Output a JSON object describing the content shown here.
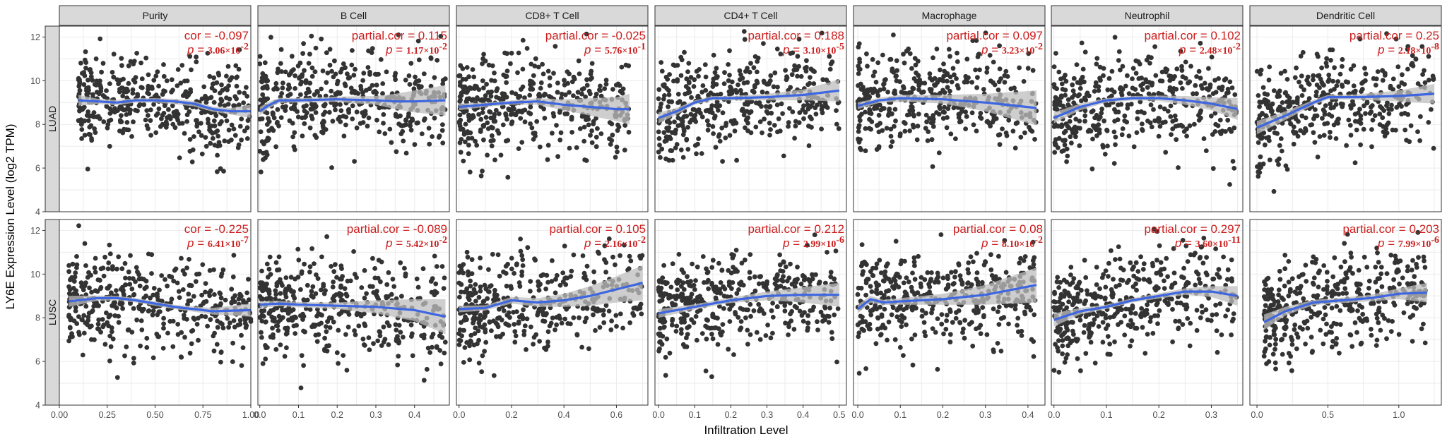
{
  "figure": {
    "xlabel": "Infiltration Level",
    "ylabel": "LY6E Expression Level (log2 TPM)"
  },
  "rows": [
    "LUAD",
    "LUSC"
  ],
  "columns": [
    {
      "title": "Purity",
      "xlim": [
        0,
        1.0
      ],
      "xticks": [
        0.0,
        0.25,
        0.5,
        0.75,
        1.0
      ],
      "xtick_labels": [
        "0.00",
        "0.25",
        "0.50",
        "0.75",
        "1.00"
      ]
    },
    {
      "title": "B Cell",
      "xlim": [
        -0.005,
        0.49
      ],
      "xticks": [
        0,
        0.1,
        0.2,
        0.3,
        0.4
      ],
      "xtick_labels": [
        "0.0",
        "0.1",
        "0.2",
        "0.3",
        "0.4"
      ]
    },
    {
      "title": "CD8+ T Cell",
      "xlim": [
        -0.01,
        0.72
      ],
      "xticks": [
        0,
        0.2,
        0.4,
        0.6
      ],
      "xtick_labels": [
        "0.0",
        "0.2",
        "0.4",
        "0.6"
      ]
    },
    {
      "title": "CD4+ T Cell",
      "xlim": [
        -0.01,
        0.52
      ],
      "xticks": [
        0,
        0.1,
        0.2,
        0.3,
        0.4,
        0.5
      ],
      "xtick_labels": [
        "0.0",
        "0.1",
        "0.2",
        "0.3",
        "0.4",
        "0.5"
      ]
    },
    {
      "title": "Macrophage",
      "xlim": [
        -0.01,
        0.44
      ],
      "xticks": [
        0,
        0.1,
        0.2,
        0.3,
        0.4
      ],
      "xtick_labels": [
        "0.0",
        "0.1",
        "0.2",
        "0.3",
        "0.4"
      ]
    },
    {
      "title": "Neutrophil",
      "xlim": [
        -0.005,
        0.36
      ],
      "xticks": [
        0,
        0.1,
        0.2,
        0.3
      ],
      "xtick_labels": [
        "0.0",
        "0.1",
        "0.2",
        "0.3"
      ]
    },
    {
      "title": "Dendritic Cell",
      "xlim": [
        -0.05,
        1.3
      ],
      "xticks": [
        0,
        0.5,
        1.0
      ],
      "xtick_labels": [
        "0.0",
        "0.5",
        "1.0"
      ]
    }
  ],
  "ylim": [
    4,
    12.5
  ],
  "yticks": [
    4,
    6,
    8,
    10,
    12
  ],
  "ytick_labels": [
    "4",
    "6",
    "8",
    "10",
    "12"
  ],
  "chart_data": {
    "type": "scatter",
    "facets": [
      {
        "row": "LUAD",
        "col": "Purity",
        "label": "cor = ",
        "stat": "-0.097",
        "p": "3.06×10",
        "p_exp": "-2",
        "fit": [
          [
            0.1,
            9.1
          ],
          [
            0.2,
            9.05
          ],
          [
            0.3,
            9.0
          ],
          [
            0.4,
            9.1
          ],
          [
            0.5,
            9.1
          ],
          [
            0.6,
            9.05
          ],
          [
            0.7,
            8.95
          ],
          [
            0.8,
            8.7
          ],
          [
            0.9,
            8.6
          ],
          [
            1.0,
            8.6
          ]
        ],
        "band": [
          0.25,
          0.12,
          0.12,
          0.1,
          0.1,
          0.12,
          0.12,
          0.12,
          0.15,
          0.3
        ]
      },
      {
        "row": "LUAD",
        "col": "B Cell",
        "label": "partial.cor = ",
        "stat": "0.115",
        "p": "1.17×10",
        "p_exp": "-2",
        "fit": [
          [
            0.0,
            8.6
          ],
          [
            0.02,
            8.85
          ],
          [
            0.05,
            9.1
          ],
          [
            0.1,
            9.1
          ],
          [
            0.2,
            9.15
          ],
          [
            0.3,
            9.1
          ],
          [
            0.35,
            9.05
          ],
          [
            0.4,
            9.05
          ],
          [
            0.48,
            9.1
          ]
        ],
        "band": [
          0.2,
          0.15,
          0.12,
          0.1,
          0.12,
          0.2,
          0.35,
          0.5,
          0.7
        ]
      },
      {
        "row": "LUAD",
        "col": "CD8+ T Cell",
        "label": "partial.cor = ",
        "stat": "-0.025",
        "p": "5.76×10",
        "p_exp": "-1",
        "fit": [
          [
            0.0,
            8.8
          ],
          [
            0.1,
            8.9
          ],
          [
            0.2,
            9.0
          ],
          [
            0.3,
            9.05
          ],
          [
            0.4,
            8.9
          ],
          [
            0.5,
            8.8
          ],
          [
            0.6,
            8.7
          ],
          [
            0.65,
            8.7
          ]
        ],
        "band": [
          0.15,
          0.1,
          0.1,
          0.15,
          0.25,
          0.4,
          0.55,
          0.7
        ]
      },
      {
        "row": "LUAD",
        "col": "CD4+ T Cell",
        "label": "partial.cor = ",
        "stat": "0.188",
        "p": "3.10×10",
        "p_exp": "-5",
        "fit": [
          [
            0.0,
            8.3
          ],
          [
            0.05,
            8.6
          ],
          [
            0.1,
            9.0
          ],
          [
            0.15,
            9.2
          ],
          [
            0.2,
            9.2
          ],
          [
            0.3,
            9.25
          ],
          [
            0.4,
            9.35
          ],
          [
            0.5,
            9.55
          ]
        ],
        "band": [
          0.25,
          0.15,
          0.1,
          0.1,
          0.1,
          0.15,
          0.25,
          0.5
        ]
      },
      {
        "row": "LUAD",
        "col": "Macrophage",
        "label": "partial.cor = ",
        "stat": "0.097",
        "p": "3.23×10",
        "p_exp": "-2",
        "fit": [
          [
            0.0,
            8.85
          ],
          [
            0.05,
            9.1
          ],
          [
            0.1,
            9.2
          ],
          [
            0.2,
            9.15
          ],
          [
            0.3,
            9.0
          ],
          [
            0.42,
            8.75
          ]
        ],
        "band": [
          0.15,
          0.12,
          0.15,
          0.2,
          0.4,
          0.8
        ]
      },
      {
        "row": "LUAD",
        "col": "Neutrophil",
        "label": "partial.cor = ",
        "stat": "0.102",
        "p": "2.48×10",
        "p_exp": "-2",
        "fit": [
          [
            0.0,
            8.3
          ],
          [
            0.05,
            8.8
          ],
          [
            0.1,
            9.1
          ],
          [
            0.15,
            9.2
          ],
          [
            0.2,
            9.2
          ],
          [
            0.25,
            9.1
          ],
          [
            0.3,
            8.95
          ],
          [
            0.35,
            8.7
          ]
        ],
        "band": [
          0.25,
          0.15,
          0.1,
          0.1,
          0.12,
          0.2,
          0.3,
          0.5
        ]
      },
      {
        "row": "LUAD",
        "col": "Dendritic Cell",
        "label": "partial.cor = ",
        "stat": "0.25",
        "p": "2.18×10",
        "p_exp": "-8",
        "fit": [
          [
            0.0,
            7.85
          ],
          [
            0.2,
            8.4
          ],
          [
            0.4,
            9.0
          ],
          [
            0.5,
            9.25
          ],
          [
            0.7,
            9.25
          ],
          [
            1.0,
            9.3
          ],
          [
            1.25,
            9.4
          ]
        ],
        "band": [
          0.3,
          0.2,
          0.12,
          0.1,
          0.12,
          0.25,
          0.45
        ]
      },
      {
        "row": "LUSC",
        "col": "Purity",
        "label": "cor = ",
        "stat": "-0.225",
        "p": "6.41×10",
        "p_exp": "-7",
        "fit": [
          [
            0.05,
            8.75
          ],
          [
            0.2,
            8.9
          ],
          [
            0.3,
            8.9
          ],
          [
            0.4,
            8.8
          ],
          [
            0.5,
            8.65
          ],
          [
            0.6,
            8.5
          ],
          [
            0.7,
            8.4
          ],
          [
            0.8,
            8.3
          ],
          [
            1.0,
            8.35
          ]
        ],
        "band": [
          0.25,
          0.12,
          0.1,
          0.1,
          0.1,
          0.1,
          0.12,
          0.15,
          0.3
        ]
      },
      {
        "row": "LUSC",
        "col": "B Cell",
        "label": "partial.cor = ",
        "stat": "-0.089",
        "p": "5.42×10",
        "p_exp": "-2",
        "fit": [
          [
            0.0,
            8.6
          ],
          [
            0.05,
            8.65
          ],
          [
            0.1,
            8.6
          ],
          [
            0.2,
            8.55
          ],
          [
            0.3,
            8.5
          ],
          [
            0.4,
            8.35
          ],
          [
            0.48,
            8.05
          ]
        ],
        "band": [
          0.15,
          0.12,
          0.12,
          0.15,
          0.3,
          0.5,
          0.8
        ]
      },
      {
        "row": "LUSC",
        "col": "CD8+ T Cell",
        "label": "partial.cor = ",
        "stat": "0.105",
        "p": "2.16×10",
        "p_exp": "-2",
        "fit": [
          [
            0.0,
            8.4
          ],
          [
            0.1,
            8.45
          ],
          [
            0.2,
            8.8
          ],
          [
            0.3,
            8.7
          ],
          [
            0.4,
            8.8
          ],
          [
            0.5,
            9.0
          ],
          [
            0.6,
            9.3
          ],
          [
            0.7,
            9.6
          ]
        ],
        "band": [
          0.15,
          0.12,
          0.15,
          0.2,
          0.3,
          0.45,
          0.6,
          0.8
        ]
      },
      {
        "row": "LUSC",
        "col": "CD4+ T Cell",
        "label": "partial.cor = ",
        "stat": "0.212",
        "p": "2.99×10",
        "p_exp": "-6",
        "fit": [
          [
            0.0,
            8.2
          ],
          [
            0.1,
            8.5
          ],
          [
            0.2,
            8.8
          ],
          [
            0.3,
            9.0
          ],
          [
            0.4,
            9.05
          ],
          [
            0.5,
            9.05
          ]
        ],
        "band": [
          0.2,
          0.12,
          0.12,
          0.2,
          0.35,
          0.55
        ]
      },
      {
        "row": "LUSC",
        "col": "Macrophage",
        "label": "partial.cor = ",
        "stat": "0.08",
        "p": "8.10×10",
        "p_exp": "-2",
        "fit": [
          [
            0.0,
            8.4
          ],
          [
            0.03,
            8.85
          ],
          [
            0.06,
            8.7
          ],
          [
            0.1,
            8.75
          ],
          [
            0.2,
            8.85
          ],
          [
            0.3,
            9.05
          ],
          [
            0.42,
            9.5
          ]
        ],
        "band": [
          0.2,
          0.15,
          0.12,
          0.15,
          0.25,
          0.45,
          0.8
        ]
      },
      {
        "row": "LUSC",
        "col": "Neutrophil",
        "label": "partial.cor = ",
        "stat": "0.297",
        "p": "3.60×10",
        "p_exp": "-11",
        "fit": [
          [
            0.0,
            7.9
          ],
          [
            0.05,
            8.3
          ],
          [
            0.1,
            8.5
          ],
          [
            0.15,
            8.8
          ],
          [
            0.2,
            9.0
          ],
          [
            0.25,
            9.2
          ],
          [
            0.3,
            9.2
          ],
          [
            0.35,
            9.0
          ]
        ],
        "band": [
          0.3,
          0.15,
          0.1,
          0.1,
          0.12,
          0.15,
          0.25,
          0.45
        ]
      },
      {
        "row": "LUSC",
        "col": "Dendritic Cell",
        "label": "partial.cor = ",
        "stat": "0.203",
        "p": "7.99×10",
        "p_exp": "-6",
        "fit": [
          [
            0.05,
            7.8
          ],
          [
            0.2,
            8.3
          ],
          [
            0.4,
            8.7
          ],
          [
            0.6,
            8.8
          ],
          [
            0.8,
            8.9
          ],
          [
            1.0,
            9.1
          ],
          [
            1.2,
            9.15
          ]
        ],
        "band": [
          0.35,
          0.2,
          0.12,
          0.12,
          0.15,
          0.25,
          0.45
        ]
      }
    ]
  },
  "colors": {
    "points": "#333333",
    "fit_line": "#3d66e0",
    "band": "#bdbdbd",
    "annotation": "#cc1f1f",
    "strip_fill": "#d9d9d9",
    "grid": "#ebebeb"
  }
}
